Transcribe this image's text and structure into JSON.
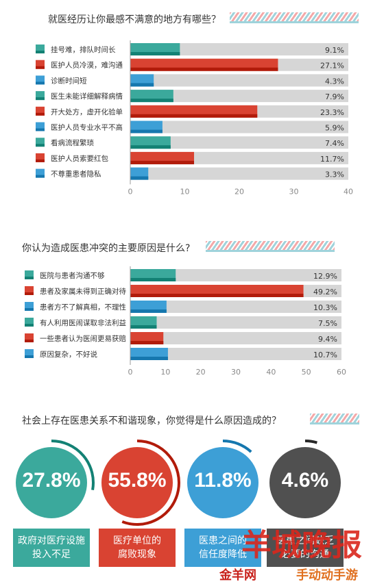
{
  "colors": {
    "teal": "#3ba99c",
    "red": "#d94332",
    "blue": "#3d9fd6",
    "dark": "#505050",
    "track": "#d6d6d6"
  },
  "chart_data": [
    {
      "type": "bar",
      "orientation": "horizontal",
      "title": "就医经历让你最感不满意的地方有哪些？",
      "categories": [
        "挂号难，排队时间长",
        "医护人员冷漠，难沟通",
        "诊断时间短",
        "医生未能详细解释病情",
        "开大处方，虚开化验单",
        "医护人员专业水平不高",
        "看病流程繁琐",
        "医护人员索要红包",
        "不尊重患者隐私"
      ],
      "values": [
        9.1,
        27.1,
        4.3,
        7.9,
        23.3,
        5.9,
        7.4,
        11.7,
        3.3
      ],
      "value_labels": [
        "9.1%",
        "27.1%",
        "4.3%",
        "7.9%",
        "23.3%",
        "5.9%",
        "7.4%",
        "11.7%",
        "3.3%"
      ],
      "bar_colors": [
        "teal",
        "red",
        "blue",
        "teal",
        "red",
        "blue",
        "teal",
        "red",
        "blue"
      ],
      "xlim": [
        0,
        40
      ],
      "xticks": [
        "0",
        "10",
        "20",
        "30",
        "40"
      ]
    },
    {
      "type": "bar",
      "orientation": "horizontal",
      "title": "你认为造成医患冲突的主要原因是什么?",
      "categories": [
        "医院与患者沟通不够",
        "患者及家属未得到正确对待",
        "患者方不了解真相，不理性",
        "有人利用医闹谋取非法利益",
        "一些患者认为医闹更易获赔",
        "原因复杂，不好说"
      ],
      "values": [
        12.9,
        49.2,
        10.3,
        7.5,
        9.4,
        10.7
      ],
      "value_labels": [
        "12.9%",
        "49.2%",
        "10.3%",
        "7.5%",
        "9.4%",
        "10.7%"
      ],
      "bar_colors": [
        "teal",
        "red",
        "blue",
        "teal",
        "red",
        "blue"
      ],
      "xlim": [
        0,
        60
      ],
      "xticks": [
        "0",
        "10",
        "20",
        "30",
        "40",
        "50",
        "60"
      ]
    },
    {
      "type": "pie",
      "title": "社会上存在医患关系不和谐现象，你觉得是什么原因造成的？",
      "items": [
        {
          "value": 27.8,
          "label": "27.8%",
          "cause": [
            "政府对医疗设施",
            "投入不足"
          ],
          "color": "teal"
        },
        {
          "value": 55.8,
          "label": "55.8%",
          "cause": [
            "医疗单位的",
            "腐败现象"
          ],
          "color": "red"
        },
        {
          "value": 11.8,
          "label": "11.8%",
          "cause": [
            "医患之间的",
            "信任度降低"
          ],
          "color": "blue"
        },
        {
          "value": 4.6,
          "label": "4.6%",
          "cause": [
            "医患之间缺乏",
            "必要的沟通"
          ],
          "color": "dark"
        }
      ]
    }
  ],
  "watermark": {
    "logo": "羊城晚报",
    "site": "金羊网",
    "tag": "手动动手游"
  }
}
